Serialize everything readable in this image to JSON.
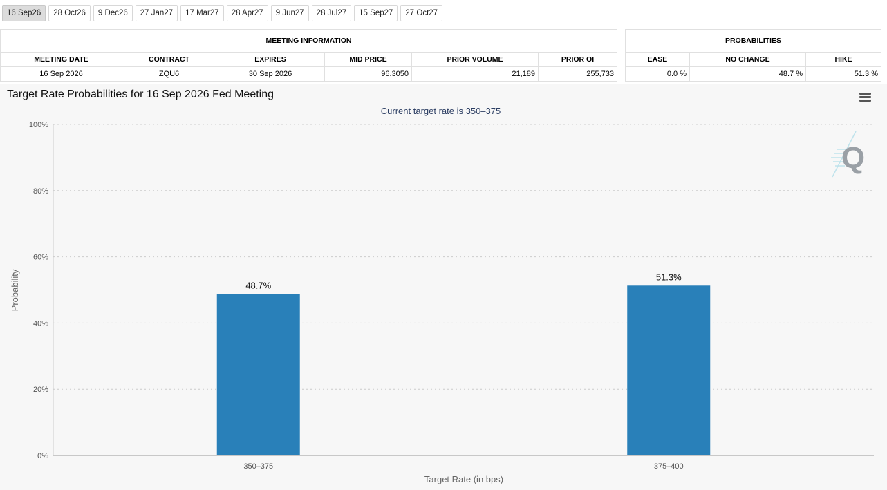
{
  "tabs": [
    "16 Sep26",
    "28 Oct26",
    "9 Dec26",
    "27 Jan27",
    "17 Mar27",
    "28 Apr27",
    "9 Jun27",
    "28 Jul27",
    "15 Sep27",
    "27 Oct27"
  ],
  "active_tab": 0,
  "meeting_info": {
    "header": "MEETING INFORMATION",
    "columns": [
      "MEETING DATE",
      "CONTRACT",
      "EXPIRES",
      "MID PRICE",
      "PRIOR VOLUME",
      "PRIOR OI"
    ],
    "row": [
      "16 Sep 2026",
      "ZQU6",
      "30 Sep 2026",
      "96.3050",
      "21,189",
      "255,733"
    ]
  },
  "probabilities": {
    "header": "PROBABILITIES",
    "columns": [
      "EASE",
      "NO CHANGE",
      "HIKE"
    ],
    "row": [
      "0.0 %",
      "48.7 %",
      "51.3 %"
    ]
  },
  "chart_title": "Target Rate Probabilities for 16 Sep 2026 Fed Meeting",
  "chart_subtitle": "Current target rate is 350–375",
  "watermark": "Q",
  "colors": {
    "bar": "#2980b9",
    "grid": "#cccccc",
    "background": "#f7f7f7"
  },
  "chart_data": {
    "type": "bar",
    "categories": [
      "350–375",
      "375–400"
    ],
    "values": [
      48.7,
      51.3
    ],
    "data_labels": [
      "48.7%",
      "51.3%"
    ],
    "title": "Target Rate Probabilities for 16 Sep 2026 Fed Meeting",
    "subtitle": "Current target rate is 350–375",
    "xlabel": "Target Rate (in bps)",
    "ylabel": "Probability",
    "ylim": [
      0,
      100
    ],
    "yticks": [
      0,
      20,
      40,
      60,
      80,
      100
    ],
    "ytick_labels": [
      "0%",
      "20%",
      "40%",
      "60%",
      "80%",
      "100%"
    ],
    "grid": true,
    "legend": "none"
  }
}
